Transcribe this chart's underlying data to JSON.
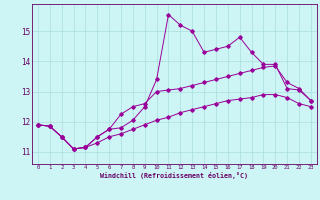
{
  "xlabel": "Windchill (Refroidissement éolien,°C)",
  "bg_color": "#cef5f5",
  "line_color": "#990099",
  "grid_color": "#aadddd",
  "axis_color": "#660066",
  "xmin": -0.5,
  "xmax": 23.5,
  "ymin": 10.6,
  "ymax": 15.9,
  "yticks": [
    11,
    12,
    13,
    14,
    15
  ],
  "xticks": [
    0,
    1,
    2,
    3,
    4,
    5,
    6,
    7,
    8,
    9,
    10,
    11,
    12,
    13,
    14,
    15,
    16,
    17,
    18,
    19,
    20,
    21,
    22,
    23
  ],
  "curve1_x": [
    0,
    1,
    2,
    3,
    4,
    5,
    6,
    7,
    8,
    9,
    10,
    11,
    12,
    13,
    14,
    15,
    16,
    17,
    18,
    19,
    20,
    21,
    22,
    23
  ],
  "curve1_y": [
    11.9,
    11.85,
    11.5,
    11.1,
    11.15,
    11.5,
    11.75,
    11.8,
    12.05,
    12.5,
    13.4,
    15.55,
    15.2,
    15.0,
    14.3,
    14.4,
    14.5,
    14.8,
    14.3,
    13.9,
    13.9,
    13.1,
    13.05,
    12.7
  ],
  "curve2_x": [
    0,
    1,
    2,
    3,
    4,
    5,
    6,
    7,
    8,
    9,
    10,
    11,
    12,
    13,
    14,
    15,
    16,
    17,
    18,
    19,
    20,
    21,
    22,
    23
  ],
  "curve2_y": [
    11.9,
    11.85,
    11.5,
    11.1,
    11.15,
    11.5,
    11.75,
    12.25,
    12.5,
    12.6,
    13.0,
    13.05,
    13.1,
    13.2,
    13.3,
    13.4,
    13.5,
    13.6,
    13.7,
    13.8,
    13.85,
    13.3,
    13.1,
    12.7
  ],
  "curve3_x": [
    0,
    1,
    2,
    3,
    4,
    5,
    6,
    7,
    8,
    9,
    10,
    11,
    12,
    13,
    14,
    15,
    16,
    17,
    18,
    19,
    20,
    21,
    22,
    23
  ],
  "curve3_y": [
    11.9,
    11.85,
    11.5,
    11.1,
    11.15,
    11.3,
    11.5,
    11.6,
    11.75,
    11.9,
    12.05,
    12.15,
    12.3,
    12.4,
    12.5,
    12.6,
    12.7,
    12.75,
    12.8,
    12.9,
    12.9,
    12.8,
    12.6,
    12.5
  ]
}
